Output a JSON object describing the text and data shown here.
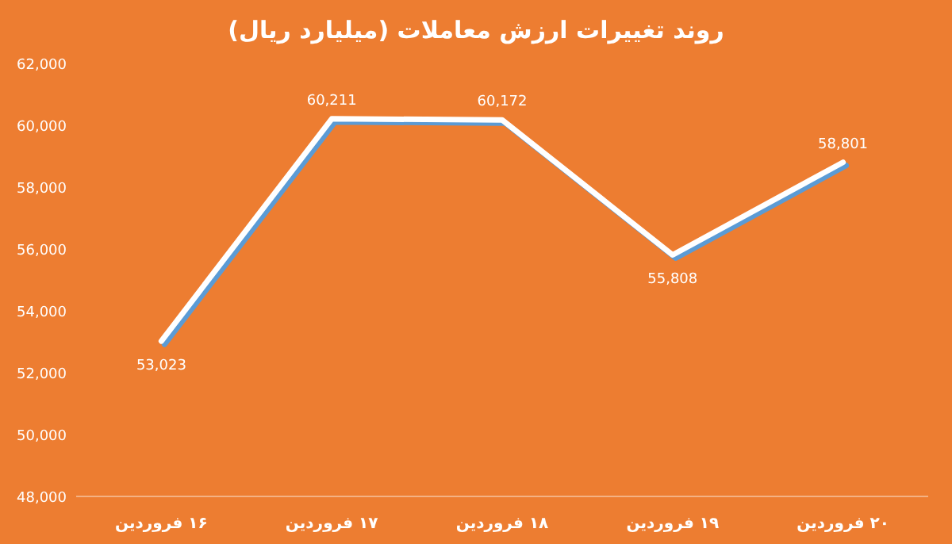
{
  "chart_data": {
    "type": "line",
    "title": "روند تغییرات ارزش معاملات (میلیارد ریال)",
    "categories": [
      "۱۶ فروردین",
      "۱۷ فروردین",
      "۱۸ فروردین",
      "۱۹ فروردین",
      "۲۰ فروردین"
    ],
    "series": [
      {
        "color": "#ffffff",
        "values": [
          53023,
          60211,
          60172,
          55808,
          58801
        ],
        "value_labels": [
          "53,023",
          "60,211",
          "60,172",
          "55,808",
          "58,801"
        ]
      }
    ],
    "ylim": [
      48000,
      62000
    ],
    "yticks": [
      {
        "value": 48000,
        "label": "48,000"
      },
      {
        "value": 50000,
        "label": "50,000"
      },
      {
        "value": 52000,
        "label": "52,000"
      },
      {
        "value": 54000,
        "label": "54,000"
      },
      {
        "value": 56000,
        "label": "56,000"
      },
      {
        "value": 58000,
        "label": "58,000"
      },
      {
        "value": 60000,
        "label": "60,000"
      },
      {
        "value": 62000,
        "label": "62,000"
      }
    ],
    "grid": false,
    "marker": "none",
    "line_style": "solid"
  }
}
